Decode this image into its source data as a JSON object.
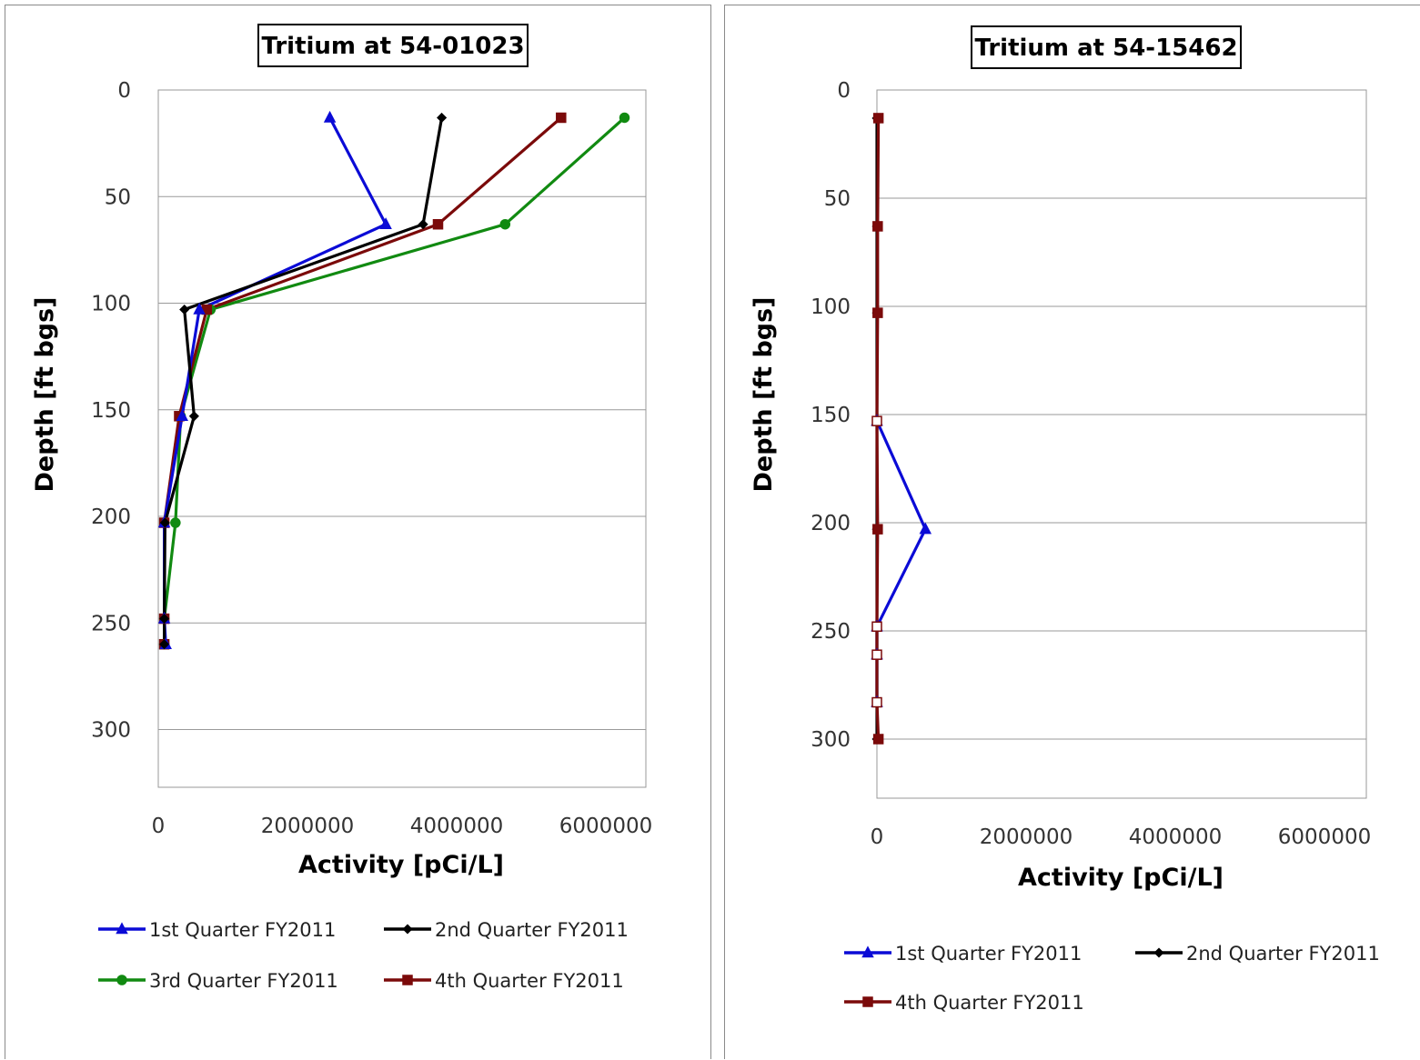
{
  "chart_data": [
    {
      "type": "line",
      "title": "Tritium at 54-01023",
      "xlabel": "Activity  [pCi/L]",
      "ylabel": "Depth [ft bgs]",
      "xlim": [
        0,
        6500000
      ],
      "ylim": [
        330,
        0
      ],
      "x_ticks": [
        "0",
        "2000000",
        "4000000",
        "6000000"
      ],
      "y_ticks": [
        "0",
        "50",
        "100",
        "150",
        "200",
        "250",
        "300"
      ],
      "grid": "horizontal",
      "legend_position": "bottom",
      "series": [
        {
          "name": "1st Quarter FY2011",
          "color": "#0b0bd6",
          "marker": "triangle",
          "points": [
            [
              2300000,
              13
            ],
            [
              3050000,
              63
            ],
            [
              550000,
              103
            ],
            [
              320000,
              153
            ],
            [
              80000,
              203
            ],
            [
              80000,
              248
            ],
            [
              100000,
              260
            ]
          ]
        },
        {
          "name": "2nd Quarter FY2011",
          "color": "#000000",
          "marker": "diamond",
          "points": [
            [
              3800000,
              13
            ],
            [
              3550000,
              63
            ],
            [
              350000,
              103
            ],
            [
              480000,
              153
            ],
            [
              90000,
              203
            ],
            [
              80000,
              248
            ],
            [
              80000,
              260
            ]
          ]
        },
        {
          "name": "3rd Quarter FY2011",
          "color": "#118a11",
          "marker": "circle",
          "points": [
            [
              6250000,
              13
            ],
            [
              4650000,
              63
            ],
            [
              700000,
              103
            ],
            [
              300000,
              153
            ],
            [
              230000,
              203
            ],
            [
              80000,
              248
            ],
            [
              80000,
              260
            ]
          ]
        },
        {
          "name": "4th Quarter FY2011",
          "color": "#7b0a0a",
          "marker": "square",
          "points": [
            [
              5400000,
              13
            ],
            [
              3750000,
              63
            ],
            [
              650000,
              103
            ],
            [
              280000,
              153
            ],
            [
              80000,
              203
            ],
            [
              80000,
              248
            ],
            [
              80000,
              260
            ]
          ]
        }
      ]
    },
    {
      "type": "line",
      "title": "Tritium at 54-15462",
      "xlabel": "Activity  [pCi/L]",
      "ylabel": "Depth [ft bgs]",
      "xlim": [
        0,
        6500000
      ],
      "ylim": [
        330,
        0
      ],
      "x_ticks": [
        "0",
        "2000000",
        "4000000",
        "6000000"
      ],
      "y_ticks": [
        "0",
        "50",
        "100",
        "150",
        "200",
        "250",
        "300"
      ],
      "grid": "horizontal",
      "legend_position": "bottom",
      "series": [
        {
          "name": "1st Quarter FY2011",
          "color": "#0b0bd6",
          "marker": "triangle",
          "points": [
            [
              0,
              153
            ],
            [
              650000,
              203
            ],
            [
              0,
              248
            ],
            [
              0,
              261
            ],
            [
              0,
              283
            ]
          ]
        },
        {
          "name": "2nd Quarter FY2011",
          "color": "#000000",
          "marker": "diamond",
          "points": [
            [
              0,
              13
            ],
            [
              0,
              63
            ],
            [
              0,
              103
            ],
            [
              0,
              153
            ],
            [
              0,
              203
            ],
            [
              0,
              248
            ],
            [
              0,
              261
            ],
            [
              0,
              283
            ],
            [
              0,
              300
            ]
          ]
        },
        {
          "name": "4th Quarter FY2011",
          "color": "#7b0a0a",
          "marker": "square",
          "points": [
            [
              20000,
              13
            ],
            [
              10000,
              63
            ],
            [
              10000,
              103
            ],
            [
              0,
              153
            ],
            [
              10000,
              203
            ],
            [
              0,
              248
            ],
            [
              0,
              261
            ],
            [
              0,
              283
            ],
            [
              20000,
              300
            ]
          ]
        }
      ],
      "open_markers": [
        [
          0,
          153
        ],
        [
          0,
          248
        ],
        [
          0,
          261
        ],
        [
          0,
          283
        ]
      ]
    }
  ]
}
